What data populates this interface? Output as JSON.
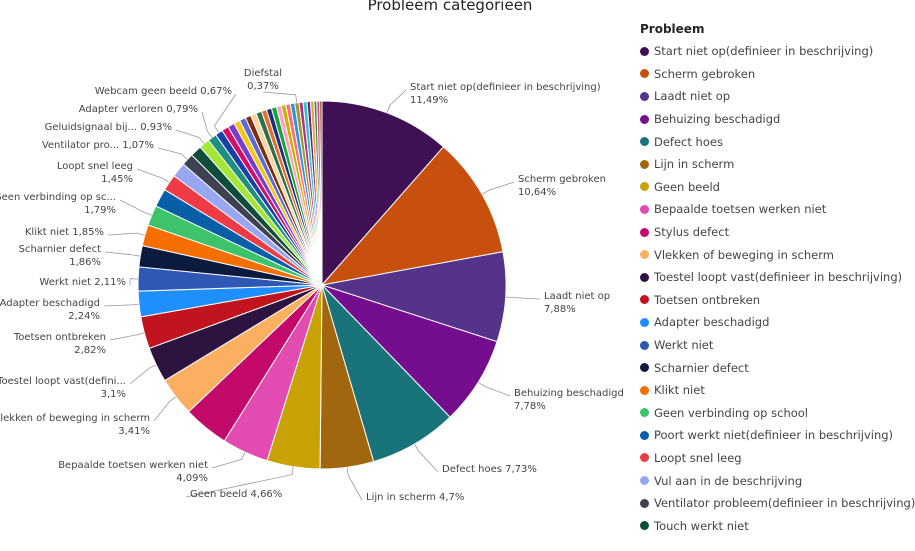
{
  "chart_data": {
    "type": "pie",
    "title": "Probleem categorieën",
    "legend_title": "Probleem",
    "legend_position": "right",
    "slices": [
      {
        "name": "Start niet op(definieer in beschrijving)",
        "value": 11.49,
        "label": "Start niet op(definieer in beschrijving)",
        "pct": "11,49%",
        "color": "#3f1054"
      },
      {
        "name": "Scherm gebroken",
        "value": 10.64,
        "label": "Scherm gebroken",
        "pct": "10,64%",
        "color": "#c8500f"
      },
      {
        "name": "Laadt niet op",
        "value": 7.88,
        "label": "Laadt niet op",
        "pct": "7,88%",
        "color": "#55338a"
      },
      {
        "name": "Behuizing beschadigd",
        "value": 7.78,
        "label": "Behuizing beschadigd",
        "pct": "7,78%",
        "color": "#740e8f"
      },
      {
        "name": "Defect hoes",
        "value": 7.73,
        "label": "Defect hoes",
        "pct": "7,73%",
        "color": "#19737a"
      },
      {
        "name": "Lijn in scherm",
        "value": 4.7,
        "label": "Lijn in scherm",
        "pct": "4,7%",
        "color": "#a1670e"
      },
      {
        "name": "Geen beeld",
        "value": 4.66,
        "label": "Geen beeld",
        "pct": "4,66%",
        "color": "#c9a206"
      },
      {
        "name": "Bepaalde toetsen werken niet",
        "value": 4.09,
        "label": "Bepaalde toetsen werken niet",
        "pct": "4,09%",
        "color": "#e24bb0"
      },
      {
        "name": "Stylus defect",
        "value": 4.0,
        "label": "",
        "pct": "",
        "color": "#c30a6b"
      },
      {
        "name": "Vlekken of beweging in scherm",
        "value": 3.41,
        "label": "Vlekken of beweging in scherm",
        "pct": "3,41%",
        "color": "#fbb061"
      },
      {
        "name": "Toestel loopt vast(definieer in beschrijving)",
        "value": 3.1,
        "label": "Toestel loopt vast(defini...",
        "pct": "3,1%",
        "color": "#2d1440"
      },
      {
        "name": "Toetsen ontbreken",
        "value": 2.82,
        "label": "Toetsen ontbreken",
        "pct": "2,82%",
        "color": "#c1141f"
      },
      {
        "name": "Adapter beschadigd",
        "value": 2.24,
        "label": "Adapter beschadigd",
        "pct": "2,24%",
        "color": "#1f8fff"
      },
      {
        "name": "Werkt niet",
        "value": 2.11,
        "label": "Werkt niet",
        "pct": "2,11%",
        "color": "#2e58b4"
      },
      {
        "name": "Scharnier defect",
        "value": 1.86,
        "label": "Scharnier defect",
        "pct": "1,86%",
        "color": "#0c1a3f"
      },
      {
        "name": "Klikt niet",
        "value": 1.85,
        "label": "Klikt niet",
        "pct": "1,85%",
        "color": "#f56e00"
      },
      {
        "name": "Geen verbinding op school",
        "value": 1.79,
        "label": "Geen verbinding op sc...",
        "pct": "1,79%",
        "color": "#3dc46b"
      },
      {
        "name": "Poort werkt niet(definieer in beschrijving)",
        "value": 1.6,
        "label": "",
        "pct": "",
        "color": "#085fa8"
      },
      {
        "name": "Loopt snel leeg",
        "value": 1.45,
        "label": "Loopt snel leeg",
        "pct": "1,45%",
        "color": "#ee3b45"
      },
      {
        "name": "Vul aan in de beschrijving",
        "value": 1.3,
        "label": "",
        "pct": "",
        "color": "#99a7f2"
      },
      {
        "name": "Ventilator probleem(definieer in beschrijving)",
        "value": 1.07,
        "label": "Ventilator pro...",
        "pct": "1,07%",
        "color": "#3e4150"
      },
      {
        "name": "Touch werkt niet",
        "value": 1.0,
        "label": "",
        "pct": "",
        "color": "#0e4d3a"
      },
      {
        "name": "Geluidsignaal bij...",
        "value": 0.93,
        "label": "Geluidsignaal bij...",
        "pct": "0,93%",
        "color": "#a3e635"
      },
      {
        "name": "Adapter verloren",
        "value": 0.79,
        "label": "Adapter verloren",
        "pct": "0,79%",
        "color": "#1f8f82"
      },
      {
        "name": "Webcam geen beeld",
        "value": 0.67,
        "label": "Webcam geen beeld",
        "pct": "0,67%",
        "color": "#1a3fa8"
      },
      {
        "value": 0.6,
        "label": "",
        "pct": "",
        "color": "#d40b67"
      },
      {
        "value": 0.6,
        "label": "",
        "pct": "",
        "color": "#7a3cc6"
      },
      {
        "value": 0.55,
        "label": "",
        "pct": "",
        "color": "#f5c518"
      },
      {
        "value": 0.55,
        "label": "",
        "pct": "",
        "color": "#5b6bd6"
      },
      {
        "value": 0.5,
        "label": "",
        "pct": "",
        "color": "#7f2d0d"
      },
      {
        "value": 0.5,
        "label": "",
        "pct": "",
        "color": "#f5d6a0"
      },
      {
        "value": 0.5,
        "label": "",
        "pct": "",
        "color": "#2f6f4a"
      },
      {
        "value": 0.45,
        "label": "",
        "pct": "",
        "color": "#e07030"
      },
      {
        "value": 0.45,
        "label": "",
        "pct": "",
        "color": "#1d2f7a"
      },
      {
        "value": 0.45,
        "label": "",
        "pct": "",
        "color": "#1aa33b"
      },
      {
        "value": 0.42,
        "label": "",
        "pct": "",
        "color": "#ff9ec7"
      },
      {
        "value": 0.4,
        "label": "",
        "pct": "",
        "color": "#c9b100"
      },
      {
        "value": 0.4,
        "label": "",
        "pct": "",
        "color": "#ff6f6f"
      },
      {
        "value": 0.4,
        "label": "",
        "pct": "",
        "color": "#3b8fe0"
      },
      {
        "name": "Diefstal",
        "value": 0.37,
        "label": "Diefstal",
        "pct": "0,37%",
        "color": "#9a9a2a"
      },
      {
        "value": 0.35,
        "label": "",
        "pct": "",
        "color": "#b22f8a"
      },
      {
        "value": 0.35,
        "label": "",
        "pct": "",
        "color": "#35c2c2"
      },
      {
        "value": 0.3,
        "label": "",
        "pct": "",
        "color": "#5f2b7a"
      },
      {
        "value": 0.3,
        "label": "",
        "pct": "",
        "color": "#f59b3a"
      },
      {
        "value": 0.25,
        "label": "",
        "pct": "",
        "color": "#2a8f5a"
      },
      {
        "value": 0.25,
        "label": "",
        "pct": "",
        "color": "#e0457b"
      },
      {
        "value": 0.2,
        "label": "",
        "pct": "",
        "color": "#8b4513"
      }
    ],
    "legend": [
      {
        "name": "Start niet op(definieer in beschrijving)",
        "color": "#3f1054"
      },
      {
        "name": "Scherm gebroken",
        "color": "#c8500f"
      },
      {
        "name": "Laadt niet op",
        "color": "#55338a"
      },
      {
        "name": "Behuizing beschadigd",
        "color": "#740e8f"
      },
      {
        "name": "Defect hoes",
        "color": "#19737a"
      },
      {
        "name": "Lijn in scherm",
        "color": "#a1670e"
      },
      {
        "name": "Geen beeld",
        "color": "#c9a206"
      },
      {
        "name": "Bepaalde toetsen werken niet",
        "color": "#e24bb0"
      },
      {
        "name": "Stylus defect",
        "color": "#c30a6b"
      },
      {
        "name": "Vlekken of beweging in scherm",
        "color": "#fbb061"
      },
      {
        "name": "Toestel loopt vast(definieer in beschrijving)",
        "color": "#2d1440"
      },
      {
        "name": "Toetsen ontbreken",
        "color": "#c1141f"
      },
      {
        "name": "Adapter beschadigd",
        "color": "#1f8fff"
      },
      {
        "name": "Werkt niet",
        "color": "#2e58b4"
      },
      {
        "name": "Scharnier defect",
        "color": "#0c1a3f"
      },
      {
        "name": "Klikt niet",
        "color": "#f56e00"
      },
      {
        "name": "Geen verbinding op school",
        "color": "#3dc46b"
      },
      {
        "name": "Poort werkt niet(definieer in beschrijving)",
        "color": "#085fa8"
      },
      {
        "name": "Loopt snel leeg",
        "color": "#ee3b45"
      },
      {
        "name": "Vul aan in de beschrijving",
        "color": "#99a7f2"
      },
      {
        "name": "Ventilator probleem(definieer in beschrijving)",
        "color": "#3e4150"
      },
      {
        "name": "Touch werkt niet",
        "color": "#0e4d3a"
      }
    ]
  }
}
